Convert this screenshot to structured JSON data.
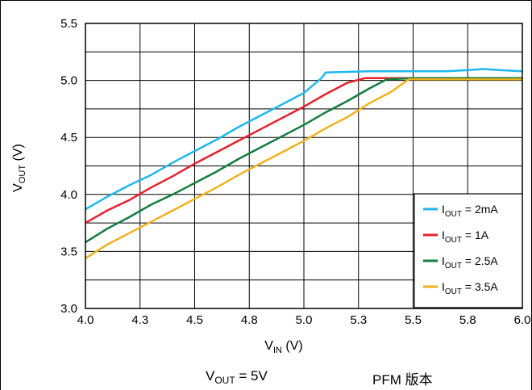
{
  "chart_data": {
    "type": "line",
    "xlabel": {
      "main": "V",
      "sub": "IN",
      "tail": " (V)"
    },
    "ylabel": {
      "main": "V",
      "sub": "OUT",
      "tail": " (V)"
    },
    "xlim": [
      4.0,
      6.0
    ],
    "ylim": [
      3.0,
      5.5
    ],
    "x_ticks": [
      "4.0",
      "4.3",
      "4.5",
      "4.8",
      "5.0",
      "5.3",
      "5.5",
      "5.8",
      "6.0"
    ],
    "y_ticks": [
      "3.0",
      "3.5",
      "4.0",
      "4.5",
      "5.0",
      "5.5"
    ],
    "grid": true,
    "legend_position": "bottom-right",
    "series": [
      {
        "name": "I_OUT = 2mA",
        "label_main": "I",
        "label_sub": "OUT",
        "label_tail": " = 2mA",
        "color": "#1fb8ee",
        "points": [
          [
            4.0,
            3.87
          ],
          [
            4.1,
            3.98
          ],
          [
            4.2,
            4.08
          ],
          [
            4.3,
            4.17
          ],
          [
            4.4,
            4.28
          ],
          [
            4.5,
            4.38
          ],
          [
            4.6,
            4.48
          ],
          [
            4.7,
            4.59
          ],
          [
            4.8,
            4.69
          ],
          [
            4.9,
            4.79
          ],
          [
            5.0,
            4.89
          ],
          [
            5.08,
            5.02
          ],
          [
            5.1,
            5.07
          ],
          [
            5.3,
            5.08
          ],
          [
            5.5,
            5.08
          ],
          [
            5.65,
            5.08
          ],
          [
            5.75,
            5.09
          ],
          [
            5.82,
            5.1
          ],
          [
            5.9,
            5.09
          ],
          [
            6.0,
            5.08
          ]
        ]
      },
      {
        "name": "I_OUT = 1A",
        "label_main": "I",
        "label_sub": "OUT",
        "label_tail": " = 1A",
        "color": "#e8202a",
        "points": [
          [
            4.0,
            3.75
          ],
          [
            4.1,
            3.86
          ],
          [
            4.2,
            3.95
          ],
          [
            4.3,
            4.06
          ],
          [
            4.4,
            4.16
          ],
          [
            4.5,
            4.27
          ],
          [
            4.6,
            4.37
          ],
          [
            4.7,
            4.47
          ],
          [
            4.8,
            4.57
          ],
          [
            4.9,
            4.67
          ],
          [
            5.0,
            4.77
          ],
          [
            5.1,
            4.88
          ],
          [
            5.2,
            4.98
          ],
          [
            5.28,
            5.02
          ],
          [
            5.4,
            5.02
          ],
          [
            5.6,
            5.02
          ],
          [
            6.0,
            5.02
          ]
        ]
      },
      {
        "name": "I_OUT = 2.5A",
        "label_main": "I",
        "label_sub": "OUT",
        "label_tail": " = 2.5A",
        "color": "#137c3e",
        "points": [
          [
            4.0,
            3.58
          ],
          [
            4.1,
            3.7
          ],
          [
            4.2,
            3.8
          ],
          [
            4.3,
            3.91
          ],
          [
            4.4,
            4.0
          ],
          [
            4.5,
            4.1
          ],
          [
            4.6,
            4.2
          ],
          [
            4.7,
            4.31
          ],
          [
            4.8,
            4.41
          ],
          [
            4.9,
            4.51
          ],
          [
            5.0,
            4.61
          ],
          [
            5.1,
            4.72
          ],
          [
            5.2,
            4.82
          ],
          [
            5.3,
            4.93
          ],
          [
            5.38,
            5.01
          ],
          [
            5.5,
            5.02
          ],
          [
            6.0,
            5.02
          ]
        ]
      },
      {
        "name": "I_OUT = 3.5A",
        "label_main": "I",
        "label_sub": "OUT",
        "label_tail": " = 3.5A",
        "color": "#f0b21c",
        "points": [
          [
            4.0,
            3.44
          ],
          [
            4.1,
            3.56
          ],
          [
            4.2,
            3.66
          ],
          [
            4.3,
            3.76
          ],
          [
            4.4,
            3.86
          ],
          [
            4.5,
            3.96
          ],
          [
            4.6,
            4.06
          ],
          [
            4.7,
            4.17
          ],
          [
            4.8,
            4.27
          ],
          [
            4.9,
            4.37
          ],
          [
            5.0,
            4.47
          ],
          [
            5.1,
            4.58
          ],
          [
            5.2,
            4.68
          ],
          [
            5.3,
            4.8
          ],
          [
            5.4,
            4.9
          ],
          [
            5.48,
            5.01
          ],
          [
            5.6,
            5.01
          ],
          [
            6.0,
            5.01
          ]
        ]
      }
    ]
  },
  "caption": {
    "vout_main": "V",
    "vout_sub": "OUT",
    "vout_tail": " = 5V",
    "version": "PFM 版本"
  }
}
